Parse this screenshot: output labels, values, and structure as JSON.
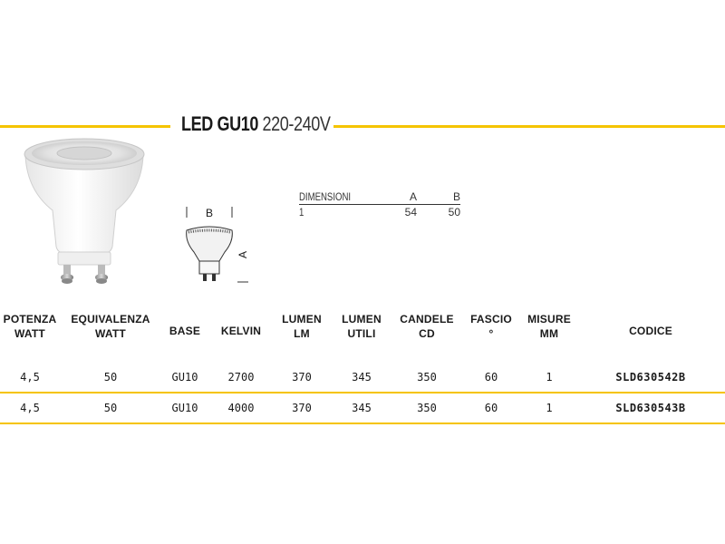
{
  "title": {
    "name": "LED GU10",
    "voltage": "220-240V"
  },
  "colors": {
    "accent": "#f5c400"
  },
  "dimensions": {
    "headers": [
      "DIMENSIONI",
      "A",
      "B"
    ],
    "rows": [
      [
        "1",
        "54",
        "50"
      ]
    ]
  },
  "drawing": {
    "label_b": "B",
    "label_a": "A"
  },
  "table": {
    "columns": [
      [
        "POTENZA",
        "WATT"
      ],
      [
        "EQUIVALENZA",
        "WATT"
      ],
      [
        "BASE",
        ""
      ],
      [
        "KELVIN",
        ""
      ],
      [
        "LUMEN",
        "LM"
      ],
      [
        "LUMEN",
        "UTILI"
      ],
      [
        "CANDELE",
        "CD"
      ],
      [
        "FASCIO",
        "°"
      ],
      [
        "MISURE",
        "MM"
      ],
      [
        "CODICE",
        ""
      ]
    ],
    "rows": [
      [
        "4,5",
        "50",
        "GU10",
        "2700",
        "370",
        "345",
        "350",
        "60",
        "1",
        "SLD630542B"
      ],
      [
        "4,5",
        "50",
        "GU10",
        "4000",
        "370",
        "345",
        "350",
        "60",
        "1",
        "SLD630543B"
      ]
    ]
  }
}
